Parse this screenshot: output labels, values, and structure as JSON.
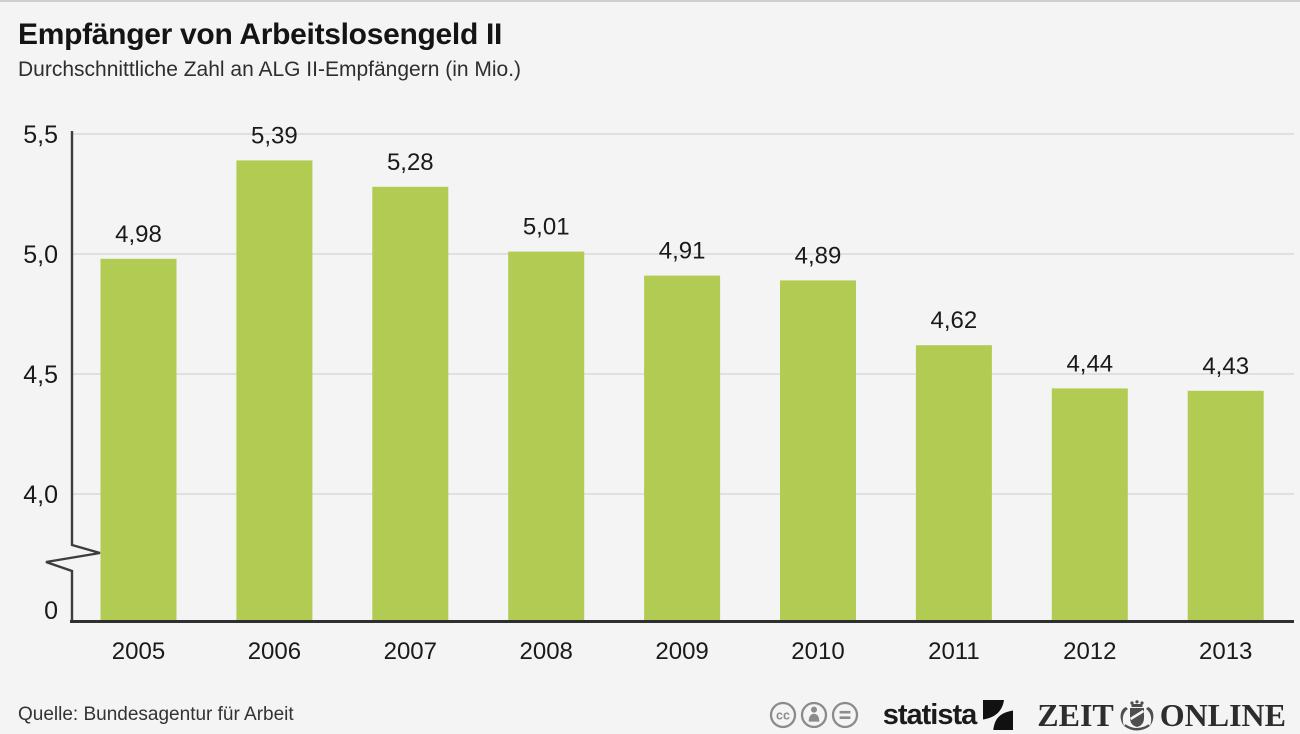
{
  "header": {
    "title": "Empfänger von Arbeitslosengeld II",
    "subtitle": "Durchschnittliche Zahl an ALG II-Empfängern (in Mio.)"
  },
  "chart_data": {
    "type": "bar",
    "title": "Empfänger von Arbeitslosengeld II",
    "subtitle": "Durchschnittliche Zahl an ALG II-Empfängern (in Mio.)",
    "categories": [
      "2005",
      "2006",
      "2007",
      "2008",
      "2009",
      "2010",
      "2011",
      "2012",
      "2013"
    ],
    "values": [
      4.98,
      5.39,
      5.28,
      5.01,
      4.91,
      4.89,
      4.62,
      4.44,
      4.43
    ],
    "value_labels": [
      "4,98",
      "5,39",
      "5,28",
      "5,01",
      "4,91",
      "4,89",
      "4,62",
      "4,44",
      "4,43"
    ],
    "xlabel": "",
    "ylabel": "",
    "y_ticks": [
      {
        "label": "5,5",
        "value": 5.5
      },
      {
        "label": "5,0",
        "value": 5.0
      },
      {
        "label": "4,5",
        "value": 4.5
      },
      {
        "label": "4,0",
        "value": 4.0
      },
      {
        "label": "0",
        "value": 0
      }
    ],
    "axis_break": true,
    "axis_break_between": [
      0,
      4.0
    ],
    "grid": true,
    "legend": "none",
    "bar_color": "#b2cb52",
    "grid_color": "#d9d9d9",
    "axis_color": "#3d3d3d",
    "label_color": "#1a1a1a"
  },
  "footer": {
    "source": "Quelle: Bundesagentur für Arbeit",
    "license_icons": [
      "cc-icon",
      "attribution-icon",
      "no-derivatives-icon"
    ],
    "statista_label": "statista",
    "zeit": {
      "left": "ZEIT",
      "right": "ONLINE"
    }
  }
}
